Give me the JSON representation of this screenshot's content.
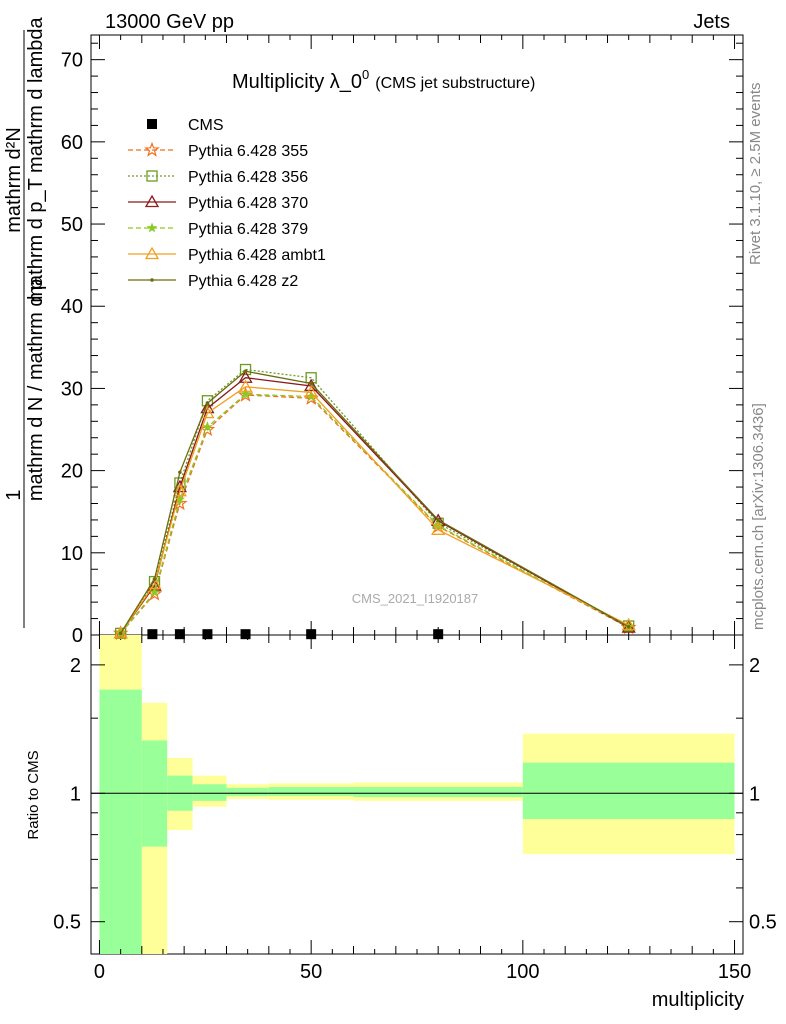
{
  "header": {
    "left": "13000 GeV pp",
    "right": "Jets"
  },
  "side_labels": {
    "rivet": "Rivet 3.1.10, ≥ 2.5M events",
    "mcplots": "mcplots.cern.ch [arXiv:1306.3436]"
  },
  "chart_data": [
    {
      "type": "line",
      "panel": "main",
      "title": "Multiplicity λ_0",
      "title_superscript": "0",
      "subtitle": "(CMS jet substructure)",
      "watermark": "CMS_2021_I1920187",
      "ylabel_numerator": "1",
      "ylabel_denominator": "mathrm d N / mathrm d p",
      "ylabel_mid": "mathrm d p",
      "ylabel_top": "mathrm d",
      "ylabel_top_sup": "2",
      "ylabel_top_n": "N",
      "ylabel_full_top": "mathrm d²N",
      "ylabel_full_bottom": "mathrm d p_T mathrm d lambda",
      "ylim": [
        0,
        73
      ],
      "xlim": [
        -2,
        152
      ],
      "yticks": [
        0,
        10,
        20,
        30,
        40,
        50,
        60,
        70
      ],
      "xticks": [
        0,
        50,
        100,
        150
      ],
      "legend_position": "top-left",
      "series": [
        {
          "name": "CMS",
          "color": "#000000",
          "marker": "square",
          "x": [
            12.5,
            19,
            25.5,
            34.5,
            50,
            80
          ],
          "y": [
            0.1,
            0.1,
            0.1,
            0.1,
            0.1,
            0.1
          ]
        },
        {
          "name": "Pythia 6.428 355",
          "color": "#f07020",
          "dash": "5,3",
          "marker": "star-open",
          "x": [
            5,
            13,
            19,
            25.5,
            34.5,
            50,
            80,
            125
          ],
          "y": [
            0.2,
            5.0,
            16.0,
            25.0,
            29.2,
            28.8,
            13.2,
            0.9
          ]
        },
        {
          "name": "Pythia 6.428 356",
          "color": "#6c9a20",
          "dash": "2,2",
          "marker": "square-open",
          "x": [
            5,
            13,
            19,
            25.5,
            34.5,
            50,
            80,
            125
          ],
          "y": [
            0.2,
            6.5,
            18.5,
            28.5,
            32.3,
            31.3,
            13.6,
            1.1
          ]
        },
        {
          "name": "Pythia 6.428 370",
          "color": "#8b1a1a",
          "dash": "",
          "marker": "triangle-open",
          "x": [
            5,
            13,
            19,
            25.5,
            34.5,
            50,
            80,
            125
          ],
          "y": [
            0.2,
            6.0,
            18.0,
            27.6,
            31.3,
            30.3,
            13.9,
            0.9
          ]
        },
        {
          "name": "Pythia 6.428 379",
          "color": "#88cc22",
          "dash": "5,3",
          "marker": "star",
          "x": [
            5,
            13,
            19,
            25.5,
            34.5,
            50,
            80,
            125
          ],
          "y": [
            0.2,
            5.2,
            16.5,
            25.3,
            29.3,
            29.0,
            13.3,
            1.0
          ]
        },
        {
          "name": "Pythia 6.428 ambt1",
          "color": "#f0a020",
          "dash": "",
          "marker": "triangle-open",
          "x": [
            5,
            13,
            19,
            25.5,
            34.5,
            50,
            80,
            125
          ],
          "y": [
            0.2,
            6.2,
            17.5,
            27.0,
            30.2,
            29.5,
            12.8,
            1.2
          ]
        },
        {
          "name": "Pythia 6.428 z2",
          "color": "#6b6b10",
          "dash": "",
          "marker": "dot",
          "x": [
            5,
            13,
            19,
            25.5,
            34.5,
            50,
            80,
            125
          ],
          "y": [
            0.2,
            6.8,
            19.8,
            28.2,
            32.1,
            30.6,
            14.0,
            1.0
          ]
        }
      ]
    },
    {
      "type": "area",
      "panel": "ratio",
      "ylabel": "Ratio to CMS",
      "xlabel": "multiplicity",
      "ylim": [
        0.42,
        2.35
      ],
      "log_scale_y": true,
      "yticks": [
        0.5,
        1,
        2
      ],
      "xticks": [
        0,
        50,
        100,
        150
      ],
      "reference_line": 1,
      "bins": [
        {
          "x0": 0,
          "x1": 10,
          "green": [
            0.4,
            1.75
          ],
          "yellow": [
            0.4,
            2.4
          ]
        },
        {
          "x0": 10,
          "x1": 16,
          "green": [
            0.75,
            1.33
          ],
          "yellow": [
            0.38,
            1.63
          ]
        },
        {
          "x0": 16,
          "x1": 22,
          "green": [
            0.91,
            1.1
          ],
          "yellow": [
            0.82,
            1.21
          ]
        },
        {
          "x0": 22,
          "x1": 30,
          "green": [
            0.96,
            1.05
          ],
          "yellow": [
            0.93,
            1.1
          ]
        },
        {
          "x0": 30,
          "x1": 40,
          "green": [
            0.985,
            1.03
          ],
          "yellow": [
            0.97,
            1.05
          ]
        },
        {
          "x0": 40,
          "x1": 60,
          "green": [
            0.985,
            1.035
          ],
          "yellow": [
            0.965,
            1.055
          ]
        },
        {
          "x0": 60,
          "x1": 100,
          "green": [
            0.98,
            1.035
          ],
          "yellow": [
            0.96,
            1.06
          ]
        },
        {
          "x0": 100,
          "x1": 150,
          "green": [
            0.87,
            1.18
          ],
          "yellow": [
            0.72,
            1.38
          ]
        }
      ],
      "colors": {
        "green": "#99ff99",
        "yellow": "#ffff99"
      }
    }
  ]
}
